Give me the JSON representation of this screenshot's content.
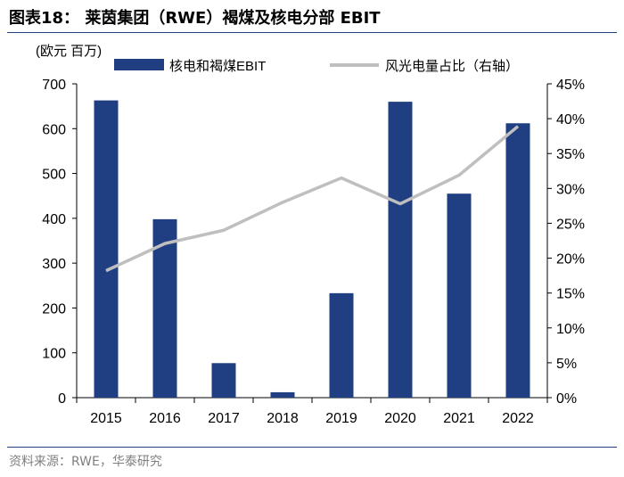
{
  "title": "图表18：  莱茵集团（RWE）褐煤及核电分部 EBIT",
  "source": "资料来源：RWE，华泰研究",
  "chart_data": {
    "type": "bar",
    "unit_label": "(欧元 百万)",
    "categories": [
      "2015",
      "2016",
      "2017",
      "2018",
      "2019",
      "2020",
      "2021",
      "2022"
    ],
    "series": [
      {
        "name": "核电和褐煤EBIT",
        "type": "bar",
        "axis": "left",
        "color": "#1f3f82",
        "values": [
          663,
          398,
          77,
          12,
          233,
          660,
          455,
          612
        ]
      },
      {
        "name": "风光电量占比（右轴）",
        "type": "line",
        "axis": "right",
        "color": "#bfbfbf",
        "values": [
          18.2,
          22.1,
          24.0,
          28.0,
          31.5,
          27.8,
          31.9,
          38.9
        ]
      }
    ],
    "y_left": {
      "min": 0,
      "max": 700,
      "ticks": [
        0,
        100,
        200,
        300,
        400,
        500,
        600,
        700
      ]
    },
    "y_right": {
      "min": 0,
      "max": 45,
      "ticks": [
        "0%",
        "5%",
        "10%",
        "15%",
        "20%",
        "25%",
        "30%",
        "35%",
        "40%",
        "45%"
      ]
    },
    "grid": false,
    "legend_position": "top"
  }
}
